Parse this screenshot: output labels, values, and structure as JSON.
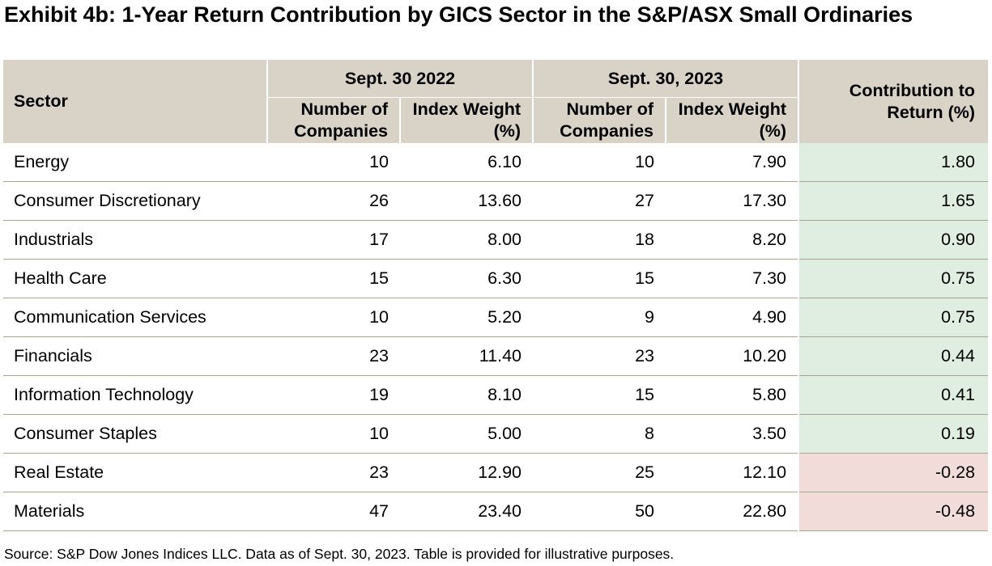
{
  "chart_data": {
    "type": "table",
    "title": "Exhibit 4b: 1-Year Return Contribution by GICS Sector in the S&P/ASX Small Ordinaries",
    "headers": {
      "sector": "Sector",
      "period_2022": "Sept. 30 2022",
      "period_2023": "Sept. 30, 2023",
      "num_companies": "Number of Companies",
      "index_weight": "Index Weight (%)",
      "contribution": "Contribution to Return (%)"
    },
    "rows": [
      {
        "sector": "Energy",
        "n2022": "10",
        "w2022": "6.10",
        "n2023": "10",
        "w2023": "7.90",
        "contrib": "1.80",
        "contrib_value": 1.8
      },
      {
        "sector": "Consumer Discretionary",
        "n2022": "26",
        "w2022": "13.60",
        "n2023": "27",
        "w2023": "17.30",
        "contrib": "1.65",
        "contrib_value": 1.65
      },
      {
        "sector": "Industrials",
        "n2022": "17",
        "w2022": "8.00",
        "n2023": "18",
        "w2023": "8.20",
        "contrib": "0.90",
        "contrib_value": 0.9
      },
      {
        "sector": "Health Care",
        "n2022": "15",
        "w2022": "6.30",
        "n2023": "15",
        "w2023": "7.30",
        "contrib": "0.75",
        "contrib_value": 0.75
      },
      {
        "sector": "Communication Services",
        "n2022": "10",
        "w2022": "5.20",
        "n2023": "9",
        "w2023": "4.90",
        "contrib": "0.75",
        "contrib_value": 0.75
      },
      {
        "sector": "Financials",
        "n2022": "23",
        "w2022": "11.40",
        "n2023": "23",
        "w2023": "10.20",
        "contrib": "0.44",
        "contrib_value": 0.44
      },
      {
        "sector": "Information Technology",
        "n2022": "19",
        "w2022": "8.10",
        "n2023": "15",
        "w2023": "5.80",
        "contrib": "0.41",
        "contrib_value": 0.41
      },
      {
        "sector": "Consumer Staples",
        "n2022": "10",
        "w2022": "5.00",
        "n2023": "8",
        "w2023": "3.50",
        "contrib": "0.19",
        "contrib_value": 0.19
      },
      {
        "sector": "Real Estate",
        "n2022": "23",
        "w2022": "12.90",
        "n2023": "25",
        "w2023": "12.10",
        "contrib": "-0.28",
        "contrib_value": -0.28
      },
      {
        "sector": "Materials",
        "n2022": "47",
        "w2022": "23.40",
        "n2023": "50",
        "w2023": "22.80",
        "contrib": "-0.48",
        "contrib_value": -0.48
      }
    ],
    "source": "Source: S&P Dow Jones Indices LLC. Data as of Sept. 30, 2023. Table is provided for illustrative purposes."
  },
  "colors": {
    "header_bg": "#d9d3c7",
    "positive_bg": "#dfeee0",
    "negative_bg": "#f2dcd9",
    "row_rule": "#a9a392"
  }
}
